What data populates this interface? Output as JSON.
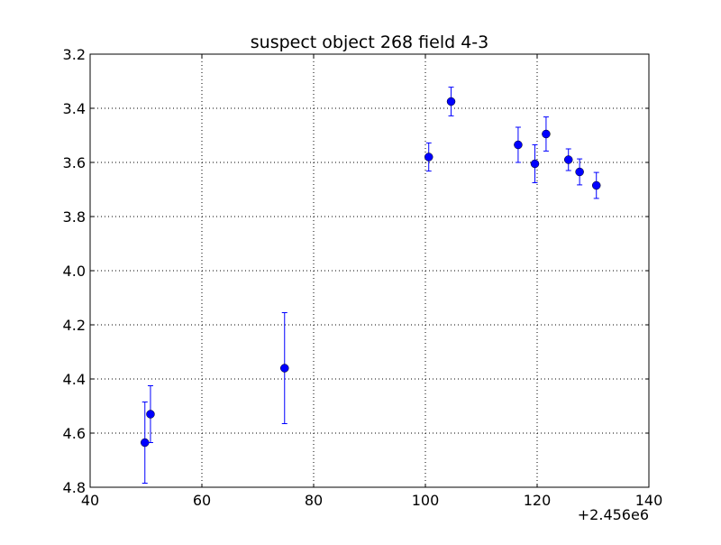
{
  "chart_data": {
    "type": "scatter",
    "title": "suspect object 268 field 4-3",
    "xlabel": "",
    "ylabel": "",
    "x_offset_label": "+2.456e6",
    "xlim": [
      40,
      140
    ],
    "ylim": [
      3.2,
      4.8
    ],
    "y_inverted": true,
    "grid": true,
    "x_ticks": [
      "40",
      "60",
      "80",
      "100",
      "120",
      "140"
    ],
    "y_ticks": [
      "3.2",
      "3.4",
      "3.6",
      "3.8",
      "4.0",
      "4.2",
      "4.4",
      "4.6",
      "4.8"
    ],
    "marker_color": "#0000ff",
    "series": [
      {
        "points": [
          {
            "x": 49.8,
            "y": 4.635,
            "err": 0.15
          },
          {
            "x": 50.8,
            "y": 4.53,
            "err": 0.105
          },
          {
            "x": 74.8,
            "y": 4.36,
            "err": 0.205
          },
          {
            "x": 100.6,
            "y": 3.58,
            "err": 0.052
          },
          {
            "x": 104.6,
            "y": 3.375,
            "err": 0.053
          },
          {
            "x": 116.6,
            "y": 3.535,
            "err": 0.065
          },
          {
            "x": 119.6,
            "y": 3.605,
            "err": 0.07
          },
          {
            "x": 121.6,
            "y": 3.495,
            "err": 0.063
          },
          {
            "x": 125.6,
            "y": 3.59,
            "err": 0.04
          },
          {
            "x": 127.6,
            "y": 3.635,
            "err": 0.048
          },
          {
            "x": 130.6,
            "y": 3.685,
            "err": 0.048
          }
        ]
      }
    ]
  }
}
